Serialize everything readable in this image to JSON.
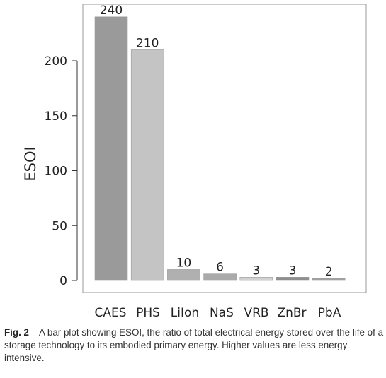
{
  "chart_data": {
    "type": "bar",
    "title": "",
    "xlabel": "",
    "ylabel": "ESOI",
    "categories": [
      "CAES",
      "PHS",
      "LiIon",
      "NaS",
      "VRB",
      "ZnBr",
      "PbA"
    ],
    "values": [
      240,
      210,
      10,
      6,
      3,
      3,
      2
    ],
    "data_labels": [
      "240",
      "210",
      "10",
      "6",
      "3",
      "3",
      "2"
    ],
    "ylim": [
      0,
      250
    ],
    "yticks": [
      0,
      50,
      100,
      150,
      200
    ],
    "grid": false,
    "legend": "none",
    "colors": [
      "#9a9a9a",
      "#c4c4c4",
      "#b0b0b0",
      "#aaaaaa",
      "#d2d2d2",
      "#8e8e8e",
      "#a0a0a0"
    ]
  },
  "caption": {
    "label": "Fig. 2",
    "text": "A bar plot showing ESOI, the ratio of total electrical energy stored over the life of a storage technology to its embodied primary energy. Higher values are less energy intensive."
  }
}
